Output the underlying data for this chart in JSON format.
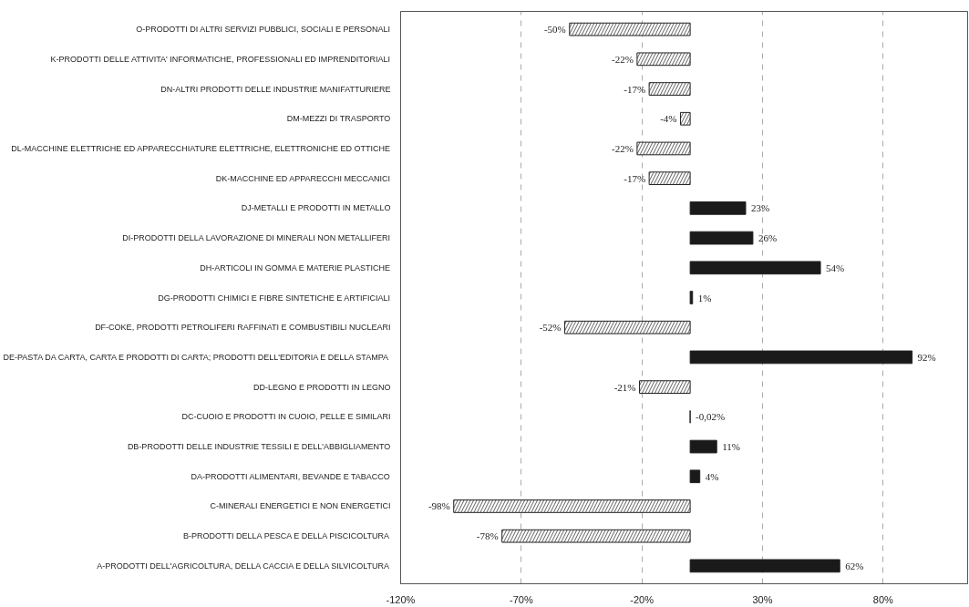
{
  "chart_data": {
    "type": "bar",
    "orientation": "horizontal",
    "categories": [
      "O-PRODOTTI DI ALTRI SERVIZI PUBBLICI, SOCIALI E PERSONALI",
      "K-PRODOTTI DELLE ATTIVITA' INFORMATICHE, PROFESSIONALI ED IMPRENDITORIALI",
      "DN-ALTRI PRODOTTI DELLE INDUSTRIE MANIFATTURIERE",
      "DM-MEZZI DI TRASPORTO",
      "DL-MACCHINE ELETTRICHE ED APPARECCHIATURE ELETTRICHE, ELETTRONICHE ED OTTICHE",
      "DK-MACCHINE ED APPARECCHI MECCANICI",
      "DJ-METALLI E PRODOTTI IN METALLO",
      "DI-PRODOTTI DELLA LAVORAZIONE DI MINERALI NON METALLIFERI",
      "DH-ARTICOLI IN GOMMA E MATERIE PLASTICHE",
      "DG-PRODOTTI CHIMICI E FIBRE SINTETICHE E ARTIFICIALI",
      "DF-COKE, PRODOTTI PETROLIFERI RAFFINATI E COMBUSTIBILI NUCLEARI",
      "DE-PASTA DA CARTA, CARTA E PRODOTTI DI CARTA; PRODOTTI DELL'EDITORIA E DELLA STAMPA",
      "DD-LEGNO E PRODOTTI IN LEGNO",
      "DC-CUOIO E PRODOTTI IN CUOIO, PELLE E SIMILARI",
      "DB-PRODOTTI DELLE INDUSTRIE TESSILI E DELL'ABBIGLIAMENTO",
      "DA-PRODOTTI ALIMENTARI, BEVANDE E TABACCO",
      "C-MINERALI ENERGETICI E NON ENERGETICI",
      "B-PRODOTTI DELLA PESCA E DELLA PISCICOLTURA",
      "A-PRODOTTI DELL'AGRICOLTURA, DELLA CACCIA E DELLA SILVICOLTURA"
    ],
    "values": [
      -50,
      -22,
      -17,
      -4,
      -22,
      -17,
      23,
      26,
      54,
      1,
      -52,
      92,
      -21,
      -0.02,
      11,
      4,
      -98,
      -78,
      62
    ],
    "value_labels": [
      "-50%",
      "-22%",
      "-17%",
      "-4%",
      "-22%",
      "-17%",
      "23%",
      "26%",
      "54%",
      "1%",
      "-52%",
      "92%",
      "-21%",
      "-0,02%",
      "11%",
      "4%",
      "-98%",
      "-78%",
      "62%"
    ],
    "colors": [
      "#ffffff",
      "#ffffff",
      "#ffffff",
      "#ffffff",
      "#ffffff",
      "#ffffff",
      "#1a1a1a",
      "#1a1a1a",
      "#1a1a1a",
      "#1a1a1a",
      "#ffffff",
      "#1a1a1a",
      "#ffffff",
      "#ffffff",
      "#1a1a1a",
      "#1a1a1a",
      "#ffffff",
      "#ffffff",
      "#1a1a1a"
    ],
    "xlim": [
      -120,
      115
    ],
    "xticks": [
      {
        "value": -120,
        "label": "-120%"
      },
      {
        "value": -70,
        "label": "-70%"
      },
      {
        "value": -20,
        "label": "-20%"
      },
      {
        "value": 30,
        "label": "30%"
      },
      {
        "value": 80,
        "label": "80%"
      }
    ],
    "grid": "x"
  }
}
